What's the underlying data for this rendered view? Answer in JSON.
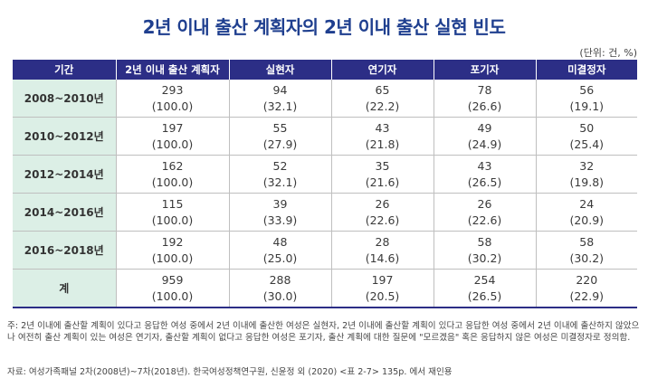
{
  "title": "2년 이내 출산 계획자의 2년 이내 출산 실현 빈도",
  "unit": "(단위: 건, %)",
  "table": {
    "headers": [
      "기간",
      "2년 이내 출산 계획자",
      "실현자",
      "연기자",
      "포기자",
      "미결정자"
    ],
    "rows": [
      {
        "period": "2008~2010년",
        "cells": [
          [
            "293",
            "(100.0)"
          ],
          [
            "94",
            "(32.1)"
          ],
          [
            "65",
            "(22.2)"
          ],
          [
            "78",
            "(26.6)"
          ],
          [
            "56",
            "(19.1)"
          ]
        ]
      },
      {
        "period": "2010~2012년",
        "cells": [
          [
            "197",
            "(100.0)"
          ],
          [
            "55",
            "(27.9)"
          ],
          [
            "43",
            "(21.8)"
          ],
          [
            "49",
            "(24.9)"
          ],
          [
            "50",
            "(25.4)"
          ]
        ]
      },
      {
        "period": "2012~2014년",
        "cells": [
          [
            "162",
            "(100.0)"
          ],
          [
            "52",
            "(32.1)"
          ],
          [
            "35",
            "(21.6)"
          ],
          [
            "43",
            "(26.5)"
          ],
          [
            "32",
            "(19.8)"
          ]
        ]
      },
      {
        "period": "2014~2016년",
        "cells": [
          [
            "115",
            "(100.0)"
          ],
          [
            "39",
            "(33.9)"
          ],
          [
            "26",
            "(22.6)"
          ],
          [
            "26",
            "(22.6)"
          ],
          [
            "24",
            "(20.9)"
          ]
        ]
      },
      {
        "period": "2016~2018년",
        "cells": [
          [
            "192",
            "(100.0)"
          ],
          [
            "48",
            "(25.0)"
          ],
          [
            "28",
            "(14.6)"
          ],
          [
            "58",
            "(30.2)"
          ],
          [
            "58",
            "(30.2)"
          ]
        ]
      },
      {
        "period": "계",
        "cells": [
          [
            "959",
            "(100.0)"
          ],
          [
            "288",
            "(30.0)"
          ],
          [
            "197",
            "(20.5)"
          ],
          [
            "254",
            "(26.5)"
          ],
          [
            "220",
            "(22.9)"
          ]
        ]
      }
    ]
  },
  "note": "주: 2년 이내에 출산할 계획이 있다고 응답한 여성 중에서 2년 이내에 출산한 여성은 실현자, 2년 이내에 출산할 계획이 있다고 응답한 여성 중에서 2년 이내에 출산하지 않았으나 여전히 출산 계획이 있는 여성은 연기자, 출산할 계획이 없다고 응답한 여성은 포기자, 출산 계획에 대한 질문에 \"모르겠음\" 혹은 응답하지 않은 여성은 미결정자로 정의함.",
  "source": "자료: 여성가족패널 2차(2008년)~7차(2018년). 한국여성정책연구원, 신윤정 외 (2020) <표 2-7> 135p. 에서 재인용",
  "colors": {
    "title": "#1f3f8f",
    "header_bg": "#2c2e86",
    "period_bg": "#dcefe6"
  }
}
